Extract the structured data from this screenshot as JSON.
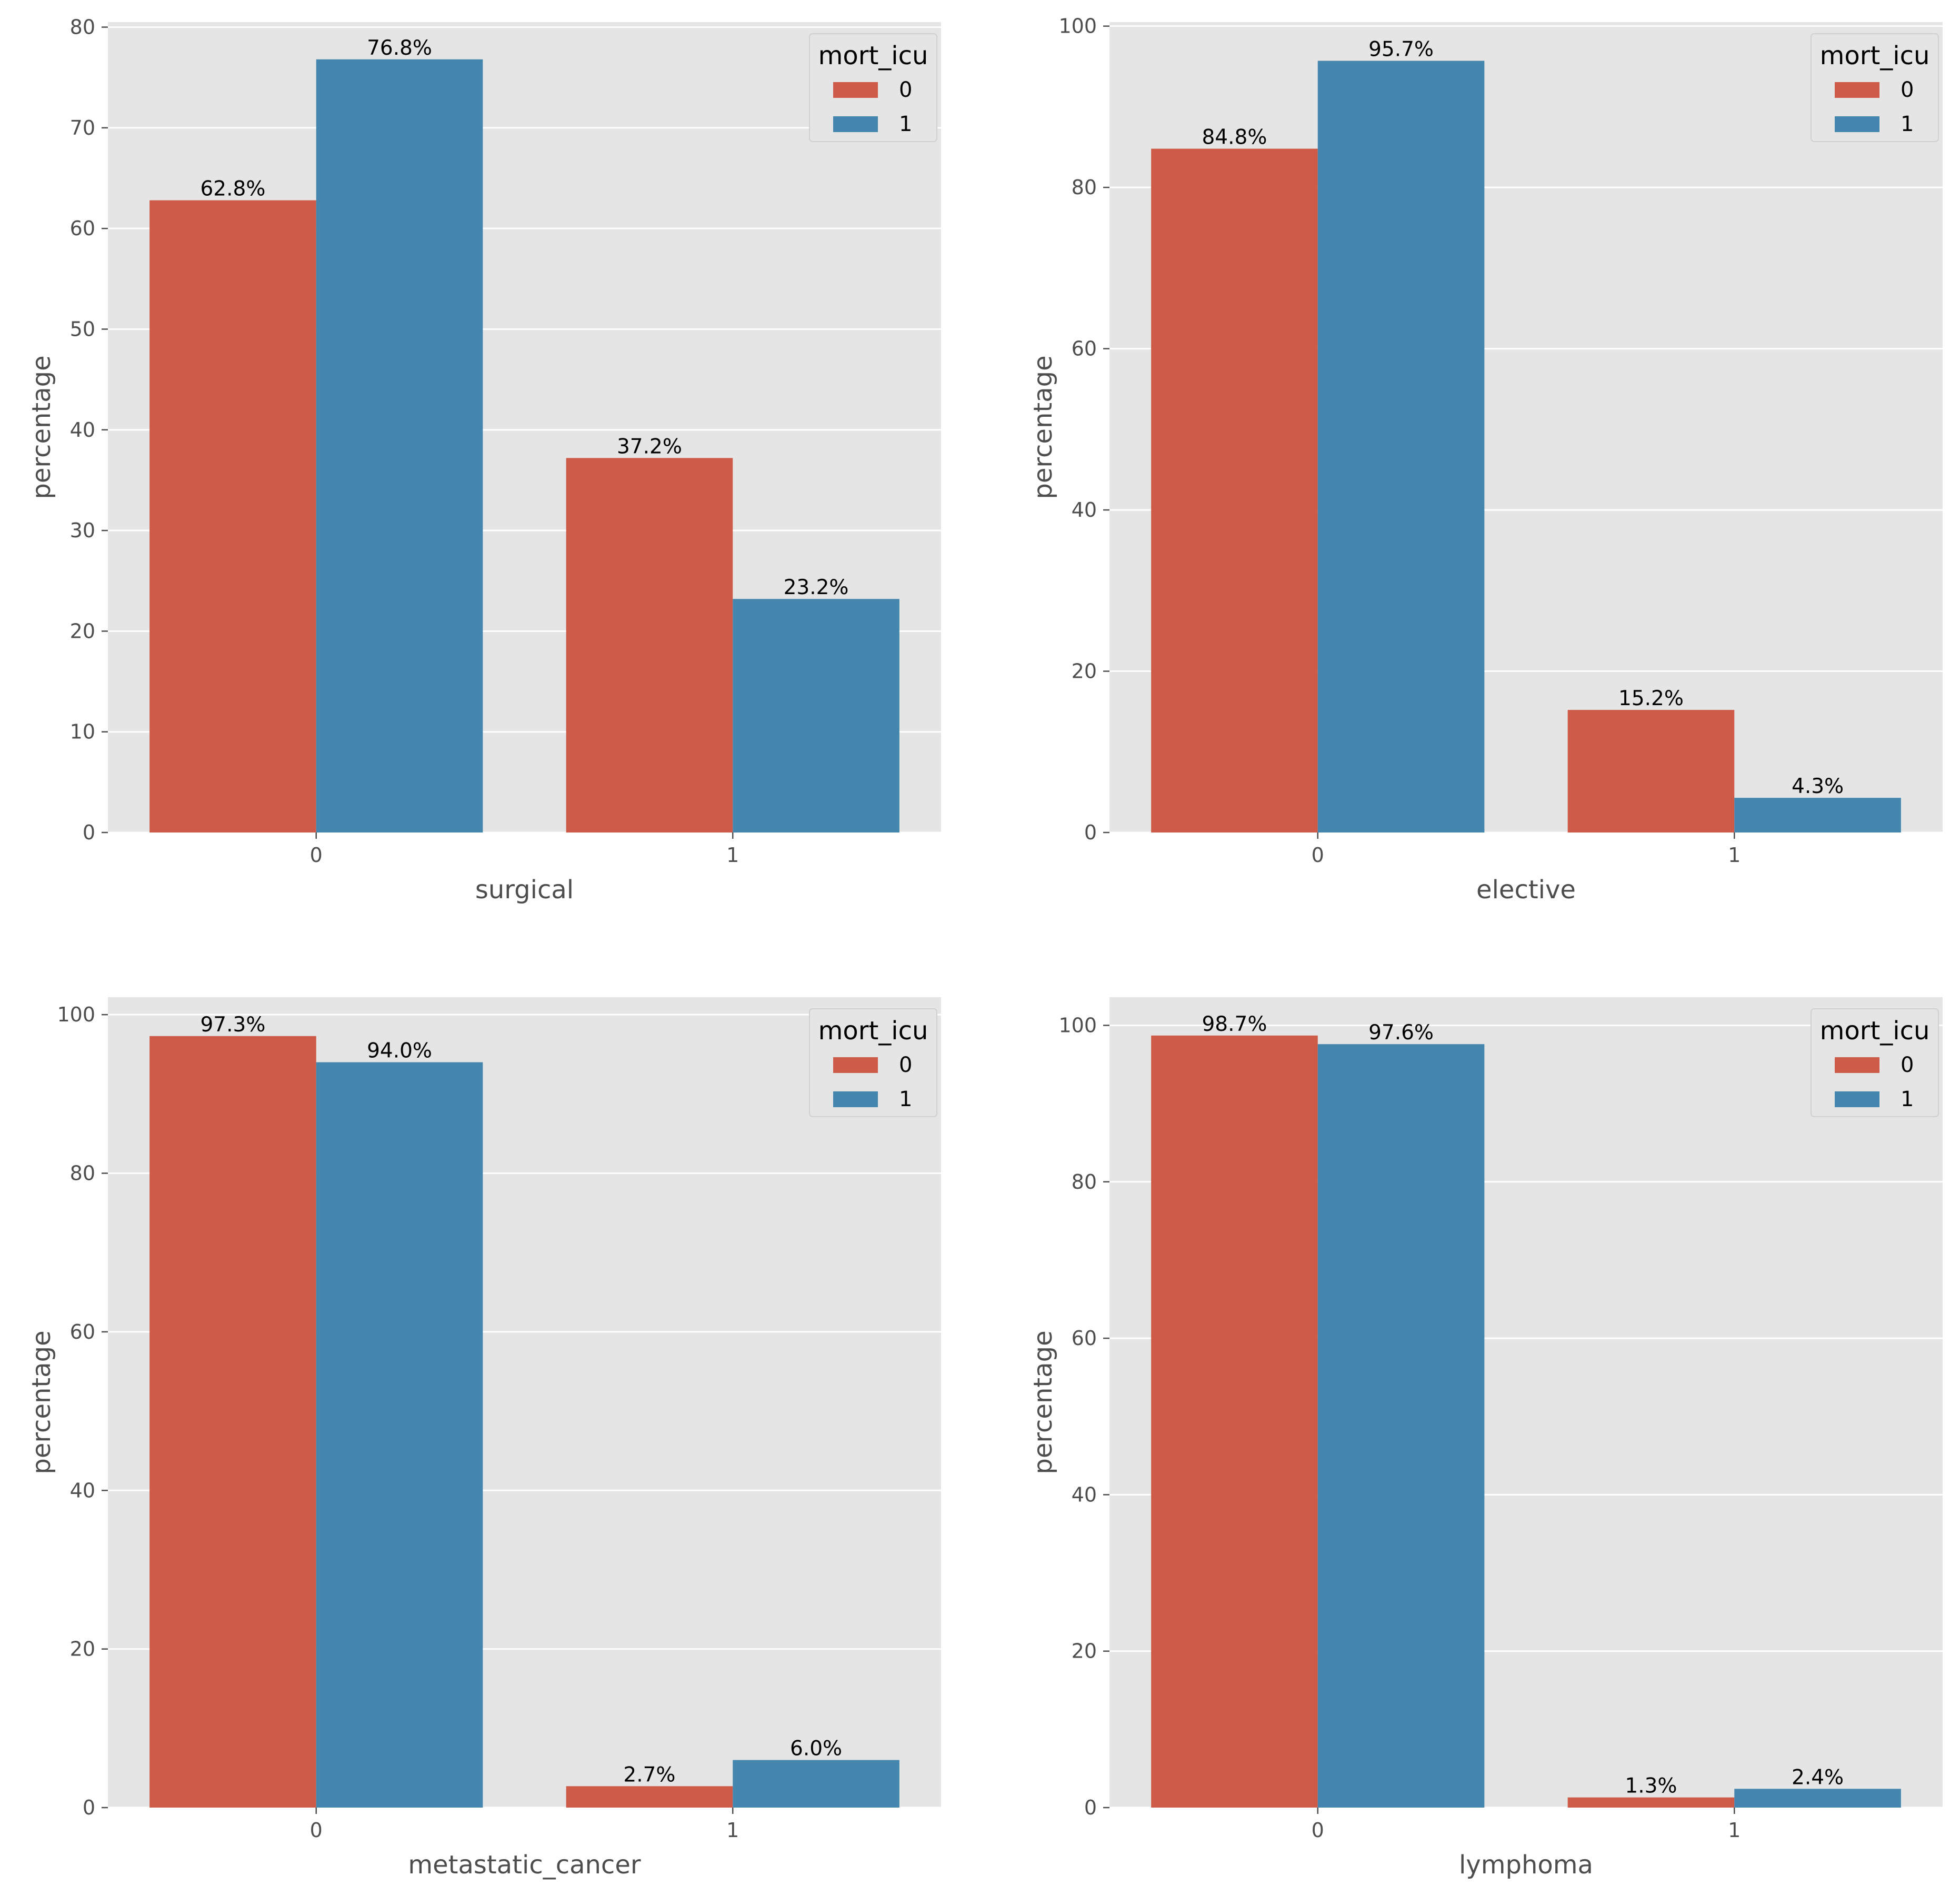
{
  "colors": {
    "series0": "#cd5b47",
    "series1": "#4586ae",
    "panel_bg": "#e5e5e5",
    "grid": "#ffffff"
  },
  "chart_data": [
    {
      "type": "bar",
      "xlabel": "surgical",
      "ylabel": "percentage",
      "categories": [
        "0",
        "1"
      ],
      "ylim": [
        0,
        80.5
      ],
      "yticks": [
        0,
        10,
        20,
        30,
        40,
        50,
        60,
        70,
        80
      ],
      "legend": {
        "title": "mort_icu",
        "placement": "top-right"
      },
      "series": [
        {
          "name": "0",
          "values": [
            62.8,
            37.2
          ],
          "labels": [
            "62.8%",
            "37.2%"
          ]
        },
        {
          "name": "1",
          "values": [
            76.8,
            23.2
          ],
          "labels": [
            "76.8%",
            "23.2%"
          ]
        }
      ]
    },
    {
      "type": "bar",
      "xlabel": "elective",
      "ylabel": "percentage",
      "categories": [
        "0",
        "1"
      ],
      "ylim": [
        0,
        100.5
      ],
      "yticks": [
        0,
        20,
        40,
        60,
        80,
        100
      ],
      "legend": {
        "title": "mort_icu",
        "placement": "top-right"
      },
      "series": [
        {
          "name": "0",
          "values": [
            84.8,
            15.2
          ],
          "labels": [
            "84.8%",
            "15.2%"
          ]
        },
        {
          "name": "1",
          "values": [
            95.7,
            4.3
          ],
          "labels": [
            "95.7%",
            "4.3%"
          ]
        }
      ]
    },
    {
      "type": "bar",
      "xlabel": "metastatic_cancer",
      "ylabel": "percentage",
      "categories": [
        "0",
        "1"
      ],
      "ylim": [
        0,
        102.2
      ],
      "yticks": [
        0,
        20,
        40,
        60,
        80,
        100
      ],
      "legend": {
        "title": "mort_icu",
        "placement": "top-right"
      },
      "series": [
        {
          "name": "0",
          "values": [
            97.3,
            2.7
          ],
          "labels": [
            "97.3%",
            "2.7%"
          ]
        },
        {
          "name": "1",
          "values": [
            94.0,
            6.0
          ],
          "labels": [
            "94.0%",
            "6.0%"
          ]
        }
      ]
    },
    {
      "type": "bar",
      "xlabel": "lymphoma",
      "ylabel": "percentage",
      "categories": [
        "0",
        "1"
      ],
      "ylim": [
        0,
        103.6
      ],
      "yticks": [
        0,
        20,
        40,
        60,
        80,
        100
      ],
      "legend": {
        "title": "mort_icu",
        "placement": "top-right"
      },
      "series": [
        {
          "name": "0",
          "values": [
            98.7,
            1.3
          ],
          "labels": [
            "98.7%",
            "1.3%"
          ]
        },
        {
          "name": "1",
          "values": [
            97.6,
            2.4
          ],
          "labels": [
            "97.6%",
            "2.4%"
          ]
        }
      ]
    }
  ]
}
